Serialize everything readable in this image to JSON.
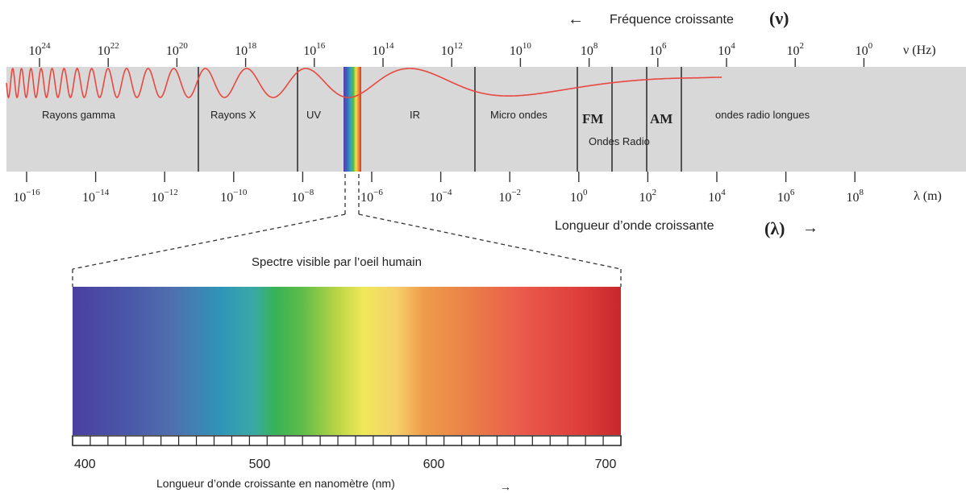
{
  "frequency_axis": {
    "title": "Fréquence croissante",
    "symbol": "(ν)",
    "unit_label": "ν (Hz)",
    "ticks": [
      {
        "base": "10",
        "exp": "24"
      },
      {
        "base": "10",
        "exp": "22"
      },
      {
        "base": "10",
        "exp": "20"
      },
      {
        "base": "10",
        "exp": "18"
      },
      {
        "base": "10",
        "exp": "16"
      },
      {
        "base": "10",
        "exp": "14"
      },
      {
        "base": "10",
        "exp": "12"
      },
      {
        "base": "10",
        "exp": "10"
      },
      {
        "base": "10",
        "exp": "8"
      },
      {
        "base": "10",
        "exp": "6"
      },
      {
        "base": "10",
        "exp": "4"
      },
      {
        "base": "10",
        "exp": "2"
      },
      {
        "base": "10",
        "exp": "0"
      }
    ]
  },
  "wavelength_axis": {
    "title": "Longueur d’onde croissante",
    "symbol": "(λ)",
    "unit_label": "λ (m)",
    "ticks": [
      {
        "base": "10",
        "exp": "−16"
      },
      {
        "base": "10",
        "exp": "−14"
      },
      {
        "base": "10",
        "exp": "−12"
      },
      {
        "base": "10",
        "exp": "−10"
      },
      {
        "base": "10",
        "exp": "−8"
      },
      {
        "base": "10",
        "exp": "−6"
      },
      {
        "base": "10",
        "exp": "−4"
      },
      {
        "base": "10",
        "exp": "−2"
      },
      {
        "base": "10",
        "exp": "0"
      },
      {
        "base": "10",
        "exp": "2"
      },
      {
        "base": "10",
        "exp": "4"
      },
      {
        "base": "10",
        "exp": "6"
      },
      {
        "base": "10",
        "exp": "8"
      }
    ]
  },
  "regions": {
    "gamma": "Rayons gamma",
    "xray": "Rayons X",
    "uv": "UV",
    "ir": "IR",
    "micro": "Micro ondes",
    "fm": "FM",
    "am": "AM",
    "radio": "Ondes Radio",
    "long": "ondes radio longues"
  },
  "visible": {
    "title": "Spectre visible par l’oeil humain",
    "axis_title": "Longueur d’onde croissante en nanomètre (nm)",
    "ticks": [
      "400",
      "500",
      "600",
      "700"
    ]
  },
  "colors": {
    "band": "#d8d8d8",
    "wave": "#e8483f",
    "text": "#222222"
  },
  "icons": {
    "left_arrow": "left-arrow-icon",
    "right_arrow": "right-arrow-icon"
  }
}
